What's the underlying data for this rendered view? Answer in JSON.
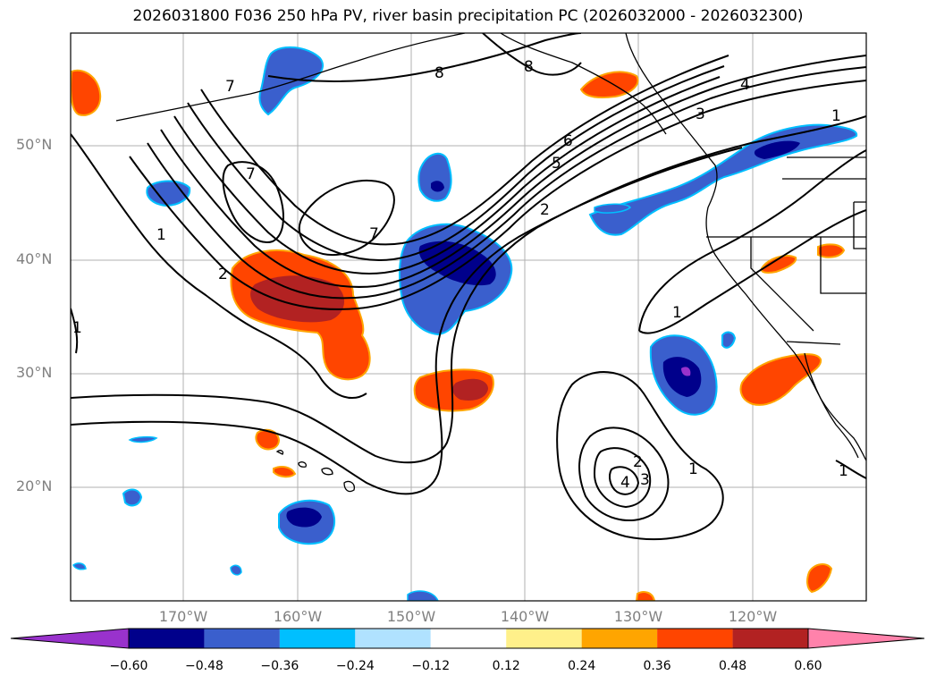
{
  "title": "2026031800 F036 250 hPa PV, river basin precipitation PC (2026032000 - 2026032300)",
  "lat_labels": [
    "50°N",
    "40°N",
    "30°N",
    "20°N"
  ],
  "lon_labels": [
    "170°W",
    "160°W",
    "150°W",
    "140°W",
    "130°W",
    "120°W"
  ],
  "contour_labels": {
    "pv_8_a": "8",
    "pv_8_b": "8",
    "pv_7_a": "7",
    "pv_7_b": "7",
    "pv_7_c": "7",
    "pv_6": "6",
    "pv_5": "5",
    "pv_4_n": "4",
    "pv_3_n": "3",
    "pv_2": "2",
    "pv_2_w": "2",
    "pv_1_w": "1",
    "pv_1_e": "1",
    "pv_1_ne": "1",
    "pv_1_far_w": "1",
    "pv_1_se": "1",
    "pv_1_sub": "1",
    "pv_2_sub": "2",
    "pv_3_sub": "3",
    "pv_4_sub": "4"
  },
  "colorbar": {
    "ticks": [
      "−0.60",
      "−0.48",
      "−0.36",
      "−0.24",
      "−0.12",
      "0.12",
      "0.24",
      "0.36",
      "0.48",
      "0.60"
    ],
    "colors": [
      "#9932cc",
      "#00008b",
      "#3a5fcd",
      "#00bfff",
      "#b0e2ff",
      "#ffffff",
      "#fff08a",
      "#ffa500",
      "#ff4500",
      "#b22222",
      "#ff82ab"
    ]
  }
}
